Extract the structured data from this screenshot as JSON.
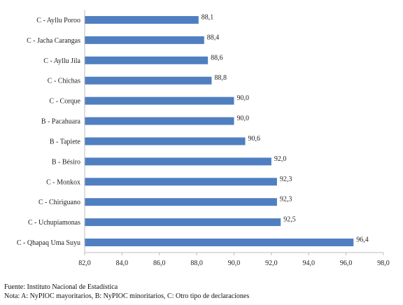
{
  "chart_data": {
    "type": "bar",
    "orientation": "horizontal",
    "categories": [
      "C - Ayllu Poroo",
      "C - Jacha Carangas",
      "C - Ayllu Jila",
      "C - Chichas",
      "C - Corque",
      "B - Pacahuara",
      "B - Tapiete",
      "B - Bésiro",
      "C - Monkox",
      "C - Chiriguano",
      "C - Uchupiamonas",
      "C - Qhapaq Uma Suyu"
    ],
    "values": [
      88.1,
      88.4,
      88.6,
      88.8,
      90.0,
      90.0,
      90.6,
      92.0,
      92.3,
      92.3,
      92.5,
      96.4
    ],
    "value_labels": [
      "88,1",
      "88,4",
      "88,6",
      "88,8",
      "90,0",
      "90,0",
      "90,6",
      "92,0",
      "92,3",
      "92,3",
      "92,5",
      "96,4"
    ],
    "xlim": [
      82,
      98
    ],
    "xticks": [
      "82,0",
      "84,0",
      "86,0",
      "88,0",
      "90,0",
      "92,0",
      "94,0",
      "96,0",
      "98,0"
    ],
    "grid": false,
    "bar_color": "#4f7fc0",
    "title": "",
    "xlabel": "",
    "ylabel": ""
  },
  "footer": {
    "source": "Fuente: Instituto Nacional de Estadística",
    "note": "Nota:  A: NyPIOC mayoritarios, B: NyPIOC minoritarios, C: Otro tipo de declaraciones"
  }
}
